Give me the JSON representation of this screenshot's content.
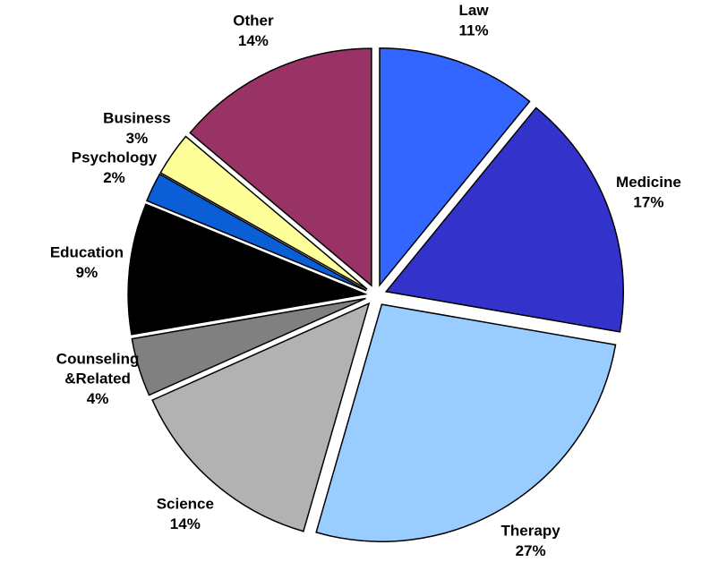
{
  "chart_data": {
    "type": "pie",
    "categories": [
      "Law",
      "Medicine",
      "Therapy",
      "Science",
      "Counseling &Related",
      "Education",
      "Psychology",
      "Business",
      "Other"
    ],
    "values": [
      11,
      17,
      27,
      14,
      4,
      9,
      2,
      3,
      14
    ],
    "value_labels": [
      "11%",
      "17%",
      "27%",
      "14%",
      "4%",
      "9%",
      "2%",
      "3%",
      "14%"
    ],
    "colors": [
      "#3366ff",
      "#3333cc",
      "#99ccff",
      "#b2b2b2",
      "#808080",
      "#000000",
      "#0a5fd6",
      "#ffff99",
      "#993366"
    ]
  }
}
